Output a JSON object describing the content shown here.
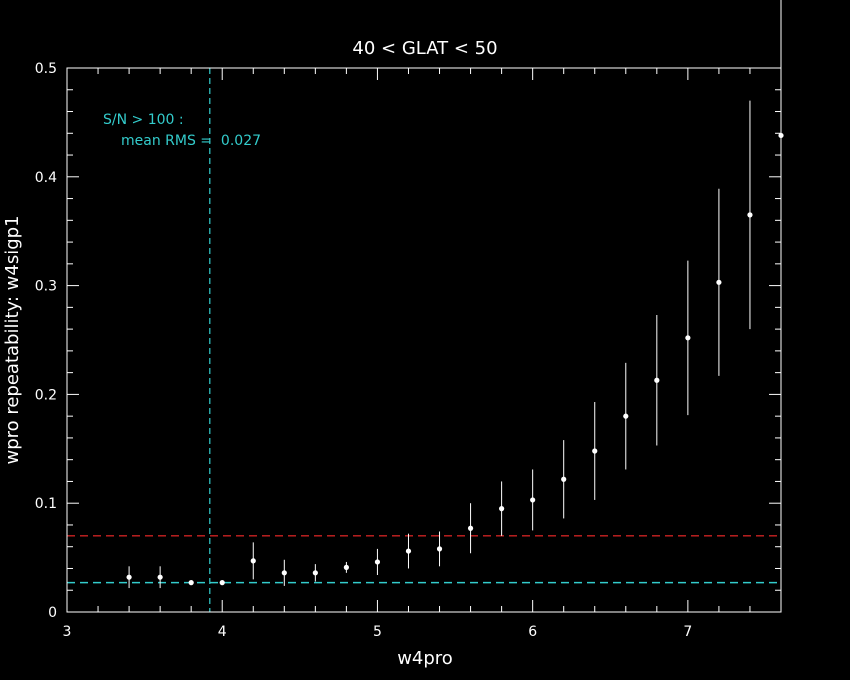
{
  "chart_data": {
    "type": "scatter",
    "title": "40 < GLAT < 50",
    "xlabel": "w4pro",
    "ylabel": "wpro repeatability: w4sigp1",
    "xlim": [
      3,
      7.6
    ],
    "ylim": [
      0,
      0.5
    ],
    "x_ticks": [
      "3",
      "4",
      "5",
      "6",
      "7"
    ],
    "y_ticks": [
      "0",
      "0.1",
      "0.2",
      "0.3",
      "0.4",
      "0.5"
    ],
    "annotation_line1": "S/N > 100 :",
    "annotation_line2": "mean RMS =  0.027",
    "reference_lines": {
      "vertical_x": 3.92,
      "mean_rms_y": 0.027,
      "threshold_y": 0.07
    },
    "colors": {
      "background": "#000000",
      "axes": "#ffffff",
      "points": "#ffffff",
      "cyan": "#33cccc",
      "red": "#cc2222"
    },
    "series": [
      {
        "x": [
          3.4,
          3.6,
          3.8,
          4.0,
          4.2,
          4.4,
          4.6,
          4.8,
          5.0,
          5.2,
          5.4,
          5.6,
          5.8,
          6.0,
          6.2,
          6.4,
          6.6,
          6.8,
          7.0,
          7.2,
          7.4,
          7.6
        ],
        "y": [
          0.032,
          0.032,
          0.027,
          0.027,
          0.047,
          0.036,
          0.036,
          0.041,
          0.046,
          0.056,
          0.058,
          0.077,
          0.095,
          0.103,
          0.122,
          0.148,
          0.18,
          0.213,
          0.252,
          0.303,
          0.365,
          0.438
        ],
        "err": [
          0.01,
          0.01,
          0.002,
          0.002,
          0.017,
          0.012,
          0.008,
          0.005,
          0.012,
          0.016,
          0.016,
          0.023,
          0.025,
          0.028,
          0.036,
          0.045,
          0.049,
          0.06,
          0.071,
          0.086,
          0.105,
          0.125
        ]
      }
    ]
  }
}
